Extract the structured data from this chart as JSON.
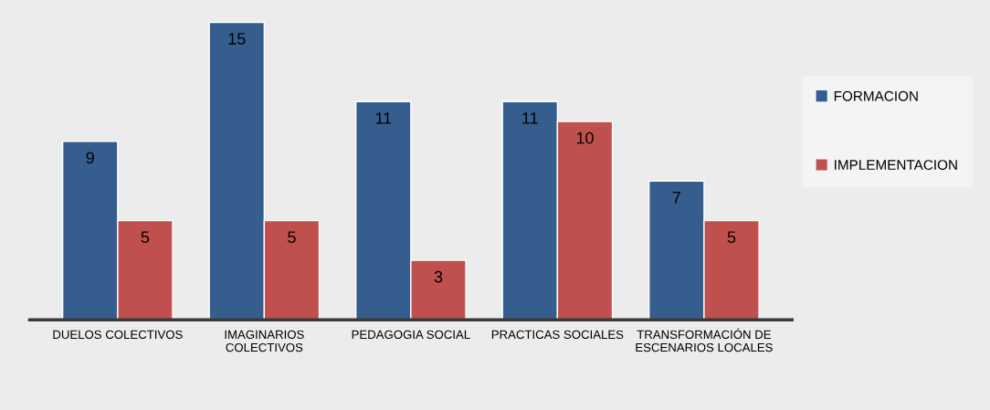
{
  "chart_data": {
    "type": "bar",
    "categories": [
      "DUELOS COLECTIVOS",
      "IMAGINARIOS\nCOLECTIVOS",
      "PEDAGOGIA SOCIAL",
      "PRACTICAS SOCIALES",
      "TRANSFORMACIÓN DE\nESCENARIOS LOCALES"
    ],
    "series": [
      {
        "name": "FORMACION",
        "color": "#355e8f",
        "values": [
          9,
          15,
          11,
          11,
          7
        ]
      },
      {
        "name": "IMPLEMENTACION",
        "color": "#c0504d",
        "values": [
          5,
          5,
          3,
          10,
          5
        ]
      }
    ],
    "data_labels": true,
    "legend": "right",
    "grid": false
  }
}
